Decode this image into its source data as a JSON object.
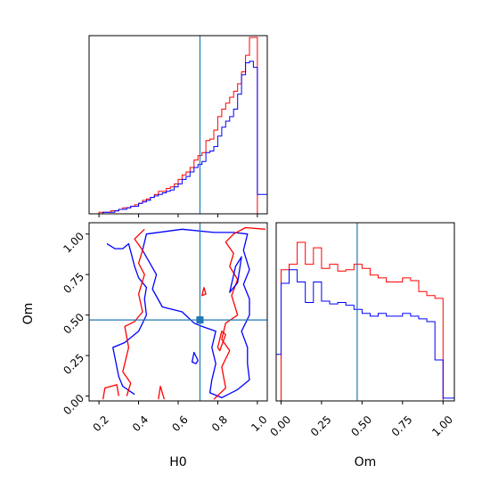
{
  "chart_data": {
    "type": "corner",
    "parameters": [
      "H0",
      "Om"
    ],
    "truth": {
      "H0": 0.71,
      "Om": 0.47
    },
    "colors": {
      "red_series": "#ff0000",
      "blue_series": "#0000ff",
      "truth_line": "#1f77b4"
    },
    "H0_axis": {
      "range": [
        0.15,
        1.05
      ],
      "ticks": [
        "0.2",
        "0.4",
        "0.6",
        "0.8",
        "1.0"
      ]
    },
    "Om_axis": {
      "range": [
        -0.03,
        1.07
      ],
      "ticks": [
        "0.00",
        "0.25",
        "0.50",
        "0.75",
        "1.00"
      ]
    },
    "xlabels": {
      "H0": "H0",
      "Om": "Om"
    },
    "ylabel_2d": "Om",
    "H0_hist": {
      "bin_edges": [
        0.2,
        0.22,
        0.24,
        0.26,
        0.28,
        0.3,
        0.32,
        0.34,
        0.36,
        0.38,
        0.4,
        0.42,
        0.44,
        0.46,
        0.48,
        0.5,
        0.52,
        0.54,
        0.56,
        0.58,
        0.6,
        0.62,
        0.64,
        0.66,
        0.68,
        0.7,
        0.72,
        0.74,
        0.76,
        0.78,
        0.8,
        0.82,
        0.84,
        0.86,
        0.88,
        0.9,
        0.92,
        0.94,
        0.96,
        0.98,
        1.0
      ],
      "red": [
        1,
        1,
        1,
        2,
        2,
        3,
        4,
        4,
        5,
        6,
        7,
        9,
        10,
        11,
        13,
        15,
        15,
        17,
        18,
        20,
        23,
        26,
        28,
        31,
        36,
        39,
        41,
        49,
        50,
        56,
        65,
        70,
        74,
        78,
        82,
        87,
        95,
        106,
        118,
        118
      ],
      "blue": [
        0,
        1,
        1,
        1,
        2,
        3,
        3,
        4,
        5,
        5,
        7,
        8,
        9,
        11,
        12,
        13,
        14,
        15,
        16,
        18,
        20,
        23,
        25,
        28,
        31,
        33,
        35,
        41,
        42,
        45,
        52,
        58,
        62,
        65,
        70,
        80,
        93,
        101,
        102,
        98
      ],
      "tail_blue": 13
    },
    "Om_hist": {
      "bin_edges": [
        0.0,
        0.05,
        0.1,
        0.15,
        0.2,
        0.25,
        0.3,
        0.35,
        0.4,
        0.45,
        0.5,
        0.55,
        0.6,
        0.65,
        0.7,
        0.75,
        0.8,
        0.85,
        0.9,
        0.95,
        1.0
      ],
      "red": [
        96,
        100,
        116,
        100,
        112,
        97,
        100,
        95,
        96,
        100,
        97,
        92,
        90,
        87,
        87,
        90,
        88,
        80,
        77,
        75
      ],
      "blue": [
        86,
        96,
        87,
        72,
        87,
        73,
        71,
        72,
        70,
        67,
        64,
        62,
        64,
        62,
        62,
        64,
        62,
        60,
        58,
        30
      ],
      "head_blue": 34,
      "tail_blue": 2
    },
    "contours": [
      {
        "series": "blue",
        "points": [
          [
            0.44,
            1.0
          ],
          [
            0.62,
            1.03
          ],
          [
            0.78,
            1.01
          ],
          [
            0.88,
            1.01
          ],
          [
            0.95,
            1.0
          ],
          [
            0.93,
            0.9
          ],
          [
            0.96,
            0.78
          ],
          [
            0.93,
            0.69
          ],
          [
            0.96,
            0.6
          ],
          [
            0.96,
            0.5
          ],
          [
            0.92,
            0.4
          ],
          [
            0.95,
            0.3
          ],
          [
            0.95,
            0.2
          ],
          [
            0.96,
            0.1
          ],
          [
            0.9,
            0.04
          ],
          [
            0.82,
            -0.01
          ],
          [
            0.76,
            0.02
          ],
          [
            0.77,
            0.1
          ],
          [
            0.79,
            0.2
          ],
          [
            0.77,
            0.3
          ],
          [
            0.79,
            0.4
          ],
          [
            0.72,
            0.43
          ],
          [
            0.68,
            0.45
          ],
          [
            0.62,
            0.52
          ],
          [
            0.52,
            0.55
          ],
          [
            0.47,
            0.66
          ],
          [
            0.49,
            0.75
          ],
          [
            0.42,
            0.9
          ],
          [
            0.44,
            1.0
          ]
        ],
        "closed": true
      },
      {
        "series": "blue",
        "points": [
          [
            0.24,
            0.94
          ],
          [
            0.28,
            0.91
          ],
          [
            0.32,
            0.91
          ],
          [
            0.35,
            0.94
          ],
          [
            0.38,
            0.8
          ],
          [
            0.4,
            0.73
          ],
          [
            0.44,
            0.67
          ],
          [
            0.43,
            0.6
          ],
          [
            0.44,
            0.5
          ],
          [
            0.4,
            0.4
          ],
          [
            0.33,
            0.33
          ],
          [
            0.27,
            0.3
          ],
          [
            0.3,
            0.12
          ],
          [
            0.32,
            0.06
          ],
          [
            0.38,
            0.01
          ]
        ],
        "closed": false
      },
      {
        "series": "red",
        "points": [
          [
            0.34,
            0.0
          ],
          [
            0.36,
            0.08
          ],
          [
            0.32,
            0.15
          ],
          [
            0.35,
            0.3
          ],
          [
            0.33,
            0.43
          ],
          [
            0.38,
            0.46
          ],
          [
            0.42,
            0.52
          ],
          [
            0.4,
            0.63
          ],
          [
            0.43,
            0.75
          ],
          [
            0.4,
            0.82
          ],
          [
            0.42,
            0.9
          ],
          [
            0.38,
            0.97
          ],
          [
            0.43,
            1.03
          ]
        ],
        "closed": false
      },
      {
        "series": "red",
        "points": [
          [
            1.04,
            1.03
          ],
          [
            0.94,
            1.04
          ],
          [
            0.88,
            1.0
          ],
          [
            0.84,
            0.95
          ],
          [
            0.88,
            0.88
          ],
          [
            0.86,
            0.8
          ],
          [
            0.9,
            0.72
          ],
          [
            0.87,
            0.62
          ],
          [
            0.9,
            0.5
          ],
          [
            0.84,
            0.45
          ],
          [
            0.82,
            0.35
          ],
          [
            0.86,
            0.28
          ],
          [
            0.82,
            0.18
          ],
          [
            0.84,
            0.05
          ],
          [
            0.78,
            -0.02
          ]
        ],
        "closed": false
      },
      {
        "series": "red",
        "points": [
          [
            0.22,
            -0.02
          ],
          [
            0.23,
            0.05
          ],
          [
            0.29,
            0.07
          ],
          [
            0.3,
            0.0
          ]
        ],
        "closed": false
      },
      {
        "series": "red",
        "points": [
          [
            0.5,
            -0.02
          ],
          [
            0.51,
            0.06
          ],
          [
            0.53,
            -0.02
          ]
        ],
        "closed": false
      },
      {
        "series": "blue",
        "points": [
          [
            0.67,
            0.21
          ],
          [
            0.68,
            0.27
          ],
          [
            0.7,
            0.22
          ],
          [
            0.69,
            0.2
          ],
          [
            0.67,
            0.21
          ]
        ],
        "closed": true
      },
      {
        "series": "red",
        "points": [
          [
            0.72,
            0.62
          ],
          [
            0.73,
            0.67
          ],
          [
            0.74,
            0.63
          ],
          [
            0.72,
            0.62
          ]
        ],
        "closed": true
      },
      {
        "series": "red",
        "points": [
          [
            0.8,
            0.3
          ],
          [
            0.82,
            0.4
          ],
          [
            0.84,
            0.38
          ],
          [
            0.81,
            0.28
          ],
          [
            0.8,
            0.3
          ]
        ],
        "closed": true
      },
      {
        "series": "blue",
        "points": [
          [
            0.86,
            0.64
          ],
          [
            0.89,
            0.8
          ],
          [
            0.92,
            0.86
          ],
          [
            0.9,
            0.7
          ],
          [
            0.86,
            0.64
          ]
        ],
        "closed": true
      }
    ]
  }
}
